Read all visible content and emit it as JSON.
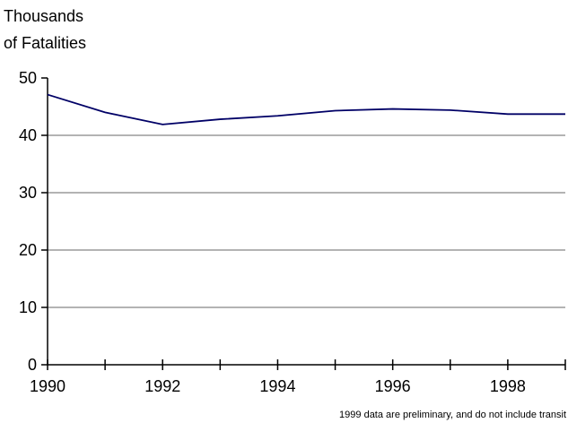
{
  "chart_data": {
    "type": "line",
    "ylabel_lines": [
      "Thousands",
      "of Fatalities"
    ],
    "xlabel": "",
    "x": [
      1990,
      1991,
      1992,
      1993,
      1994,
      1995,
      1996,
      1997,
      1998,
      1999
    ],
    "xlim": [
      1990,
      1999
    ],
    "ylim": [
      0,
      50
    ],
    "xticks": [
      1990,
      1991,
      1992,
      1993,
      1994,
      1995,
      1996,
      1997,
      1998,
      1999
    ],
    "xtick_labels": [
      "1990",
      "1992",
      "1994",
      "1996",
      "1998"
    ],
    "xtick_label_values": [
      1990,
      1992,
      1994,
      1996,
      1998
    ],
    "yticks": [
      0,
      10,
      20,
      30,
      40,
      50
    ],
    "ytick_labels": [
      "0",
      "10",
      "20",
      "30",
      "40",
      "50"
    ],
    "grid": "horizontal",
    "series": [
      {
        "values": [
          47.1,
          44.0,
          41.9,
          42.8,
          43.4,
          44.3,
          44.6,
          44.4,
          43.7,
          43.7
        ],
        "color": "#000066"
      }
    ],
    "annotations": [
      "1999 data are preliminary, and do not include transit"
    ]
  }
}
